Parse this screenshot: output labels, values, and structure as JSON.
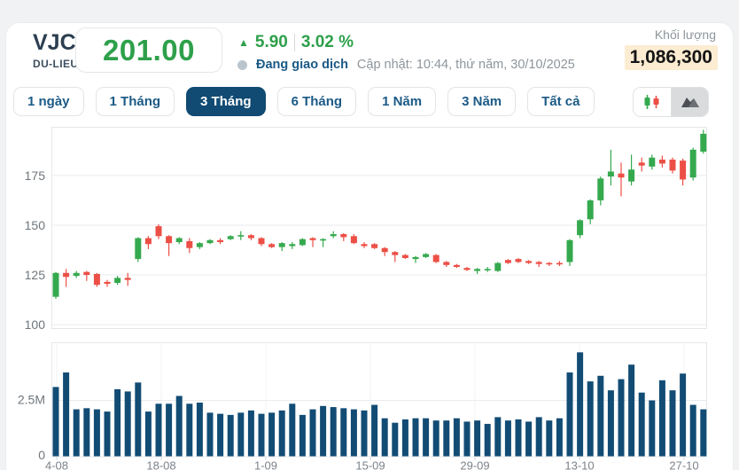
{
  "header": {
    "ticker": "VJC",
    "exchange": "DU-LIEU",
    "price": "201.00",
    "change_arrow": "▲",
    "change": "5.90",
    "change_percent": "3.02 %",
    "status": "Đang giao dịch",
    "updated": "Cập nhật: 10:44, thứ năm, 30/10/2025",
    "volume_label": "Khối lượng",
    "volume_value": "1,086,300",
    "volume_highlight_color": "#fcecd2"
  },
  "tabs": [
    {
      "label": "1 ngày",
      "selected": false
    },
    {
      "label": "1 Tháng",
      "selected": false
    },
    {
      "label": "3 Tháng",
      "selected": true
    },
    {
      "label": "6 Tháng",
      "selected": false
    },
    {
      "label": "1 Năm",
      "selected": false
    },
    {
      "label": "3 Năm",
      "selected": false
    },
    {
      "label": "Tất cả",
      "selected": false
    }
  ],
  "chart_toggle": {
    "candlestick_icon": "candlestick-chart-icon",
    "area_icon": "area-chart-icon",
    "selected": "area"
  },
  "colors": {
    "up": "#35a94e",
    "down": "#ec4f46",
    "volume_bar": "#124c75",
    "accent_navy": "#114a73",
    "price_green": "#2ea04b",
    "grid": "#e9ebed",
    "axis_text": "#6f767c"
  },
  "chart_data": {
    "type": "candlestick+volume",
    "price_axis": {
      "ticks": [
        100,
        125,
        150,
        175
      ],
      "range": [
        97.8,
        199.5
      ]
    },
    "volume_axis": {
      "tick_labels": [
        "0",
        "2.5M"
      ],
      "tick_values": [
        0,
        2.5
      ],
      "max": 5.1,
      "unit": "M"
    },
    "x_axis": {
      "ticks": [
        "4-08",
        "18-08",
        "1-09",
        "15-09",
        "29-09",
        "13-10",
        "27-10"
      ]
    },
    "candles_ohlc": [
      [
        114,
        126.5,
        113,
        126
      ],
      [
        126,
        128,
        119,
        124
      ],
      [
        124.5,
        127,
        123.5,
        126
      ],
      [
        126.5,
        127,
        122,
        125
      ],
      [
        125.5,
        126,
        119,
        120
      ],
      [
        121.5,
        122.5,
        119,
        120.5
      ],
      [
        121,
        124.5,
        120,
        123.5
      ],
      [
        123.5,
        126,
        119.5,
        122.5
      ],
      [
        133,
        144,
        131.5,
        143.5
      ],
      [
        143.5,
        144.5,
        138,
        140.5
      ],
      [
        149.5,
        150.5,
        143,
        144.5
      ],
      [
        144.5,
        145,
        134.5,
        141
      ],
      [
        141.5,
        144,
        140.5,
        143.5
      ],
      [
        142,
        143.5,
        136,
        138.5
      ],
      [
        139,
        141.5,
        138,
        141
      ],
      [
        141,
        143,
        140.5,
        142.5
      ],
      [
        142.5,
        143.5,
        140.5,
        141.5
      ],
      [
        143,
        145,
        142.5,
        144.5
      ],
      [
        144.5,
        147,
        142.5,
        145
      ],
      [
        145,
        145.5,
        142.5,
        143.5
      ],
      [
        143.5,
        144,
        139.5,
        140.5
      ],
      [
        140.5,
        141,
        138.5,
        139
      ],
      [
        139,
        141.5,
        137,
        141
      ],
      [
        139.5,
        141.5,
        138,
        140.5
      ],
      [
        140,
        143.5,
        139.5,
        143
      ],
      [
        143.5,
        144,
        139,
        142.5
      ],
      [
        142.5,
        143.5,
        139,
        143
      ],
      [
        144.5,
        147,
        143.5,
        145.5
      ],
      [
        145.5,
        146,
        142,
        144
      ],
      [
        144.5,
        145.5,
        140.5,
        141
      ],
      [
        140.5,
        141.5,
        138.5,
        139.5
      ],
      [
        140.5,
        141,
        138,
        138.5
      ],
      [
        138.5,
        139,
        134.5,
        136.5
      ],
      [
        136.5,
        137,
        131.5,
        135
      ],
      [
        135,
        135.5,
        133,
        133.5
      ],
      [
        133,
        134.5,
        131,
        134
      ],
      [
        134,
        136,
        133.5,
        135.5
      ],
      [
        135,
        135.5,
        131,
        131.5
      ],
      [
        131.5,
        132,
        129,
        130
      ],
      [
        130,
        130.5,
        128.5,
        129
      ],
      [
        128.5,
        129,
        127,
        127.5
      ],
      [
        127,
        128.5,
        125.5,
        128
      ],
      [
        127.5,
        129,
        126.5,
        128
      ],
      [
        127,
        131.5,
        126.5,
        131
      ],
      [
        132.5,
        133,
        130.5,
        131
      ],
      [
        133,
        133.5,
        131,
        131.5
      ],
      [
        132,
        132.5,
        130.5,
        131
      ],
      [
        131.5,
        132,
        129,
        130.5
      ],
      [
        131,
        131.5,
        129.5,
        130.5
      ],
      [
        131,
        132,
        129.5,
        130.5
      ],
      [
        131.5,
        143,
        129.5,
        142.5
      ],
      [
        145,
        153,
        143.5,
        152.5
      ],
      [
        153,
        163,
        150.5,
        162.5
      ],
      [
        162.5,
        174.5,
        160,
        173.5
      ],
      [
        174.5,
        188,
        170,
        177
      ],
      [
        176,
        181.5,
        164.5,
        174
      ],
      [
        172,
        185.5,
        170,
        178
      ],
      [
        181.5,
        184,
        177,
        180
      ],
      [
        179.5,
        185.5,
        178,
        184
      ],
      [
        183,
        185,
        179,
        181
      ],
      [
        183,
        184,
        176,
        177.5
      ],
      [
        182.5,
        183.5,
        170,
        173
      ],
      [
        174,
        189,
        172.5,
        188
      ],
      [
        187,
        198,
        186,
        196
      ]
    ],
    "volumes_millions": [
      3.1,
      3.75,
      2.1,
      2.15,
      2.1,
      2.0,
      3.0,
      2.9,
      3.3,
      2.0,
      2.35,
      2.35,
      2.7,
      2.35,
      2.4,
      1.95,
      1.9,
      1.85,
      1.95,
      2.05,
      1.9,
      1.95,
      2.05,
      2.35,
      1.85,
      2.1,
      2.25,
      2.2,
      2.15,
      2.1,
      2.05,
      2.3,
      1.7,
      1.5,
      1.65,
      1.7,
      1.7,
      1.6,
      1.6,
      1.7,
      1.55,
      1.6,
      1.45,
      1.75,
      1.6,
      1.65,
      1.55,
      1.75,
      1.6,
      1.7,
      3.75,
      4.65,
      3.35,
      3.6,
      2.95,
      3.45,
      4.1,
      2.85,
      2.5,
      3.4,
      2.95,
      3.7,
      2.3,
      2.1
    ]
  }
}
